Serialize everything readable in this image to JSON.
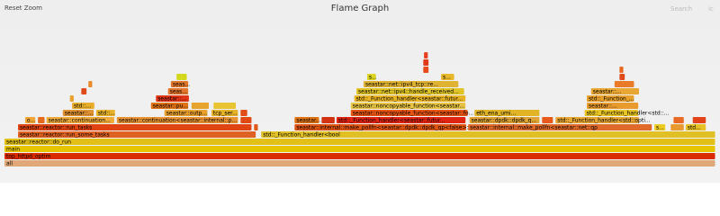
{
  "header": {
    "reset_zoom": "Reset Zoom",
    "title": "Flame Graph",
    "search": "Search",
    "search_icon": "ic"
  },
  "frames": [
    {
      "label": "all",
      "depth": 0,
      "start": 0,
      "width": 100,
      "color": "#e0a878"
    },
    {
      "label": "top_httpd_optim",
      "depth": 1,
      "start": 0,
      "width": 100,
      "color": "#d92a00"
    },
    {
      "label": "main",
      "depth": 2,
      "start": 0,
      "width": 100,
      "color": "#e6c400"
    },
    {
      "label": "seastar::reactor::do_run",
      "depth": 3,
      "start": 0,
      "width": 100,
      "color": "#e2c018"
    },
    {
      "label": "seastar::reactor::run_some_tasks",
      "depth": 4,
      "start": 1.9,
      "width": 33.5,
      "color": "#e06222"
    },
    {
      "label": "std::_Function_handler<bool",
      "depth": 4,
      "start": 36.1,
      "width": 63.9,
      "color": "#e0c024"
    },
    {
      "label": "seastar::reactor::run_tasks",
      "depth": 5,
      "start": 1.9,
      "width": 32.9,
      "color": "#e04412"
    },
    {
      "label": null,
      "depth": 5,
      "start": 35.1,
      "width": 0.6,
      "color": "#e05a18"
    },
    {
      "label": "seastar::internal::make_pollfn<seastar::dpdk::dpdk_qp<false>::...",
      "depth": 5,
      "start": 40.8,
      "width": 24.2,
      "color": "#e05412"
    },
    {
      "label": "seastar::internal::make_pollfn<seastar::net::qp",
      "depth": 5,
      "start": 65.2,
      "width": 25.9,
      "color": "#e06a2a"
    },
    {
      "label": "s...",
      "depth": 5,
      "start": 91.4,
      "width": 1.6,
      "color": "#eecc22"
    },
    {
      "label": null,
      "depth": 5,
      "start": 93.7,
      "width": 1.9,
      "color": "#e89a30"
    },
    {
      "label": "std...",
      "depth": 5,
      "start": 95.8,
      "width": 2.9,
      "color": "#e6c024"
    },
    {
      "label": "o...",
      "depth": 6,
      "start": 2.9,
      "width": 1.5,
      "color": "#f0a634"
    },
    {
      "label": null,
      "depth": 6,
      "start": 4.7,
      "width": 1.0,
      "color": "#e46a1e"
    },
    {
      "label": "seastar::continuation...",
      "depth": 6,
      "start": 5.9,
      "width": 9.6,
      "color": "#f0aa3a"
    },
    {
      "label": "seastar::continuation<seastar::internal::p...",
      "depth": 6,
      "start": 15.8,
      "width": 17.1,
      "color": "#e89232"
    },
    {
      "label": null,
      "depth": 6,
      "start": 33.2,
      "width": 1.6,
      "color": "#e24814"
    },
    {
      "label": "seastar...",
      "depth": 6,
      "start": 40.8,
      "width": 3.5,
      "color": "#e07212"
    },
    {
      "label": null,
      "depth": 6,
      "start": 44.6,
      "width": 1.9,
      "color": "#d03212"
    },
    {
      "label": "std::_Function_handler<seastar::futur...",
      "depth": 6,
      "start": 46.7,
      "width": 18.2,
      "color": "#e02412"
    },
    {
      "label": "seastar::dpdk::dpdk_q...",
      "depth": 6,
      "start": 65.4,
      "width": 9.9,
      "color": "#e0a232"
    },
    {
      "label": null,
      "depth": 6,
      "start": 75.6,
      "width": 1.6,
      "color": "#e85a1c"
    },
    {
      "label": "std::_Function_handler<std::opti...",
      "depth": 6,
      "start": 77.5,
      "width": 11.8,
      "color": "#e8a632"
    },
    {
      "label": null,
      "depth": 6,
      "start": 94.1,
      "width": 1.5,
      "color": "#e86a24"
    },
    {
      "label": null,
      "depth": 6,
      "start": 96.8,
      "width": 1.9,
      "color": "#e04418"
    },
    {
      "label": "seastar::...",
      "depth": 7,
      "start": 8.2,
      "width": 4.4,
      "color": "#e09232"
    },
    {
      "label": "std::...",
      "depth": 7,
      "start": 12.9,
      "width": 2.7,
      "color": "#e8b22a"
    },
    {
      "label": "seastar::outp...",
      "depth": 7,
      "start": 22.5,
      "width": 6.1,
      "color": "#e8a02e"
    },
    {
      "label": "tcp_ser...",
      "depth": 7,
      "start": 29.1,
      "width": 3.8,
      "color": "#e6b228"
    },
    {
      "label": null,
      "depth": 7,
      "start": 33.2,
      "width": 1.0,
      "color": "#e24c16"
    },
    {
      "label": "seastar::noncopyable_function<seastar::fo...",
      "depth": 7,
      "start": 48.7,
      "width": 16.5,
      "color": "#e85412"
    },
    {
      "label": "eth_ena_umi...",
      "depth": 7,
      "start": 66.1,
      "width": 9.2,
      "color": "#e0b424"
    },
    {
      "label": "std::_Function_handler<std::...",
      "depth": 7,
      "start": 81.6,
      "width": 7.6,
      "color": "#e8c424"
    },
    {
      "label": "std::...",
      "depth": 8,
      "start": 9.5,
      "width": 3.2,
      "color": "#e8ae2a"
    },
    {
      "label": "seastar::pu...",
      "depth": 8,
      "start": 20.6,
      "width": 5.3,
      "color": "#e07214"
    },
    {
      "label": null,
      "depth": 8,
      "start": 26.3,
      "width": 2.5,
      "color": "#e6a42c"
    },
    {
      "label": null,
      "depth": 8,
      "start": 29.4,
      "width": 3.2,
      "color": "#e8c430"
    },
    {
      "label": "seastar::noncopyable_function<seastar...",
      "depth": 8,
      "start": 48.7,
      "width": 16.2,
      "color": "#e8c442"
    },
    {
      "label": "seastar::...",
      "depth": 8,
      "start": 81.9,
      "width": 7.3,
      "color": "#e89a2c"
    },
    {
      "label": null,
      "depth": 9,
      "start": 9.2,
      "width": 0.6,
      "color": "#e8a230"
    },
    {
      "label": "seastar::...",
      "depth": 9,
      "start": 21.3,
      "width": 4.7,
      "color": "#e03414"
    },
    {
      "label": "std::_Function_handler<seastar::futur...",
      "depth": 9,
      "start": 49.2,
      "width": 15.7,
      "color": "#e8b424"
    },
    {
      "label": "std::_Function_...",
      "depth": 9,
      "start": 81.9,
      "width": 6.7,
      "color": "#e8a02a"
    },
    {
      "label": null,
      "depth": 10,
      "start": 10.8,
      "width": 0.8,
      "color": "#e04a18"
    },
    {
      "label": "seas...",
      "depth": 10,
      "start": 23.0,
      "width": 2.9,
      "color": "#e2762a"
    },
    {
      "label": "seastar::net::ipv4::handle_received...",
      "depth": 10,
      "start": 49.5,
      "width": 15.2,
      "color": "#e0c426"
    },
    {
      "label": "seastar::...",
      "depth": 10,
      "start": 82.5,
      "width": 6.8,
      "color": "#e8a632"
    },
    {
      "label": null,
      "depth": 11,
      "start": 11.8,
      "width": 0.6,
      "color": "#e88a2a"
    },
    {
      "label": "seas...",
      "depth": 11,
      "start": 23.4,
      "width": 2.5,
      "color": "#e0762a"
    },
    {
      "label": "seastar::net::ipv4_tcp::re...",
      "depth": 11,
      "start": 50.5,
      "width": 13.4,
      "color": "#e0b232"
    },
    {
      "label": null,
      "depth": 11,
      "start": 85.8,
      "width": 2.8,
      "color": "#e87a28"
    },
    {
      "label": null,
      "depth": 12,
      "start": 24.2,
      "width": 1.5,
      "color": "#d4d81c"
    },
    {
      "label": "s...",
      "depth": 12,
      "start": 51.0,
      "width": 1.3,
      "color": "#dcd420"
    },
    {
      "label": "s...",
      "depth": 12,
      "start": 61.4,
      "width": 1.9,
      "color": "#e8b82a"
    },
    {
      "label": null,
      "depth": 12,
      "start": 86.5,
      "width": 0.8,
      "color": "#e04a18"
    },
    {
      "label": null,
      "depth": 13,
      "start": 58.9,
      "width": 0.8,
      "color": "#e84a1a"
    },
    {
      "label": null,
      "depth": 13,
      "start": 86.5,
      "width": 0.6,
      "color": "#e86a22"
    },
    {
      "label": null,
      "depth": 14,
      "start": 58.9,
      "width": 0.8,
      "color": "#e03a16"
    },
    {
      "label": null,
      "depth": 15,
      "start": 59.0,
      "width": 0.6,
      "color": "#e84020"
    }
  ]
}
